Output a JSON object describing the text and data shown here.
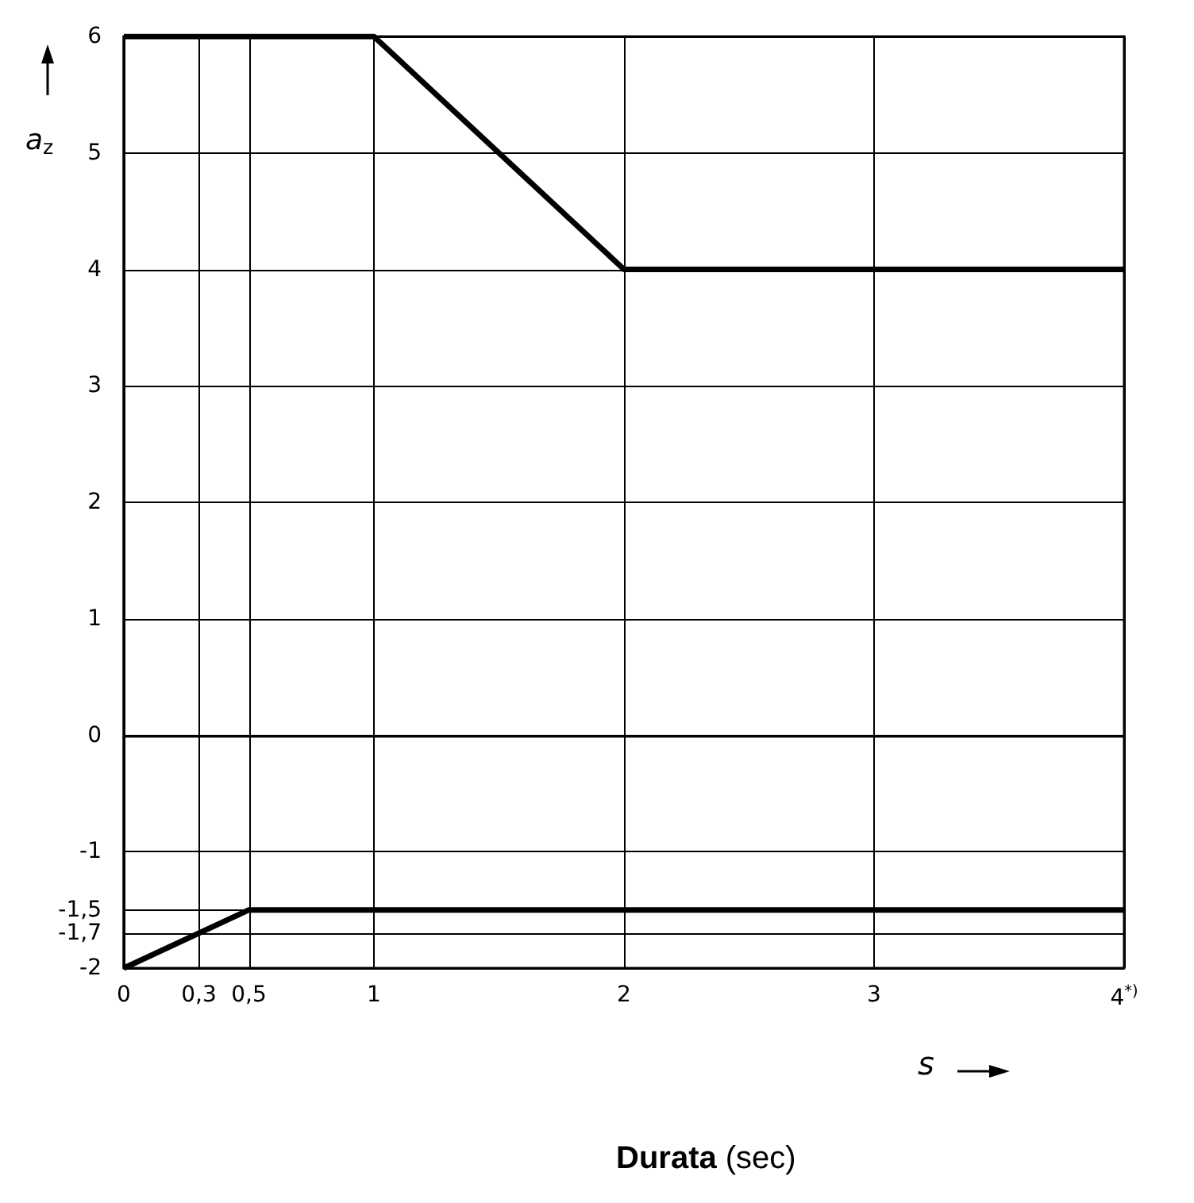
{
  "chart_data": {
    "type": "line",
    "xlabel": "s",
    "ylabel": "a$_{z}$",
    "annotations": [
      "Durata (sec)"
    ],
    "xlim": [
      0,
      4
    ],
    "ylim": [
      -2,
      6
    ],
    "xticks": [
      0,
      {
        "value": 0.3,
        "label": "0,3"
      },
      {
        "value": 0.5,
        "label": "0,5"
      },
      1,
      2,
      3,
      {
        "value": 4,
        "label": "4$^{*)}$"
      }
    ],
    "yticks": [
      -2,
      {
        "value": -1.7,
        "label": "-1,7"
      },
      {
        "value": -1.5,
        "label": "-1,5"
      },
      -1,
      0,
      1,
      2,
      3,
      4,
      5,
      6
    ],
    "grid": true,
    "marker": "none",
    "line_style": "solid",
    "series": [
      {
        "color": "#000000",
        "x": [
          0,
          1,
          2,
          4
        ],
        "values": [
          6,
          6,
          4,
          4
        ]
      },
      {
        "color": "#000000",
        "x": [
          0,
          0.5,
          4
        ],
        "values": [
          -2,
          -1.5,
          -1.5
        ]
      }
    ]
  }
}
